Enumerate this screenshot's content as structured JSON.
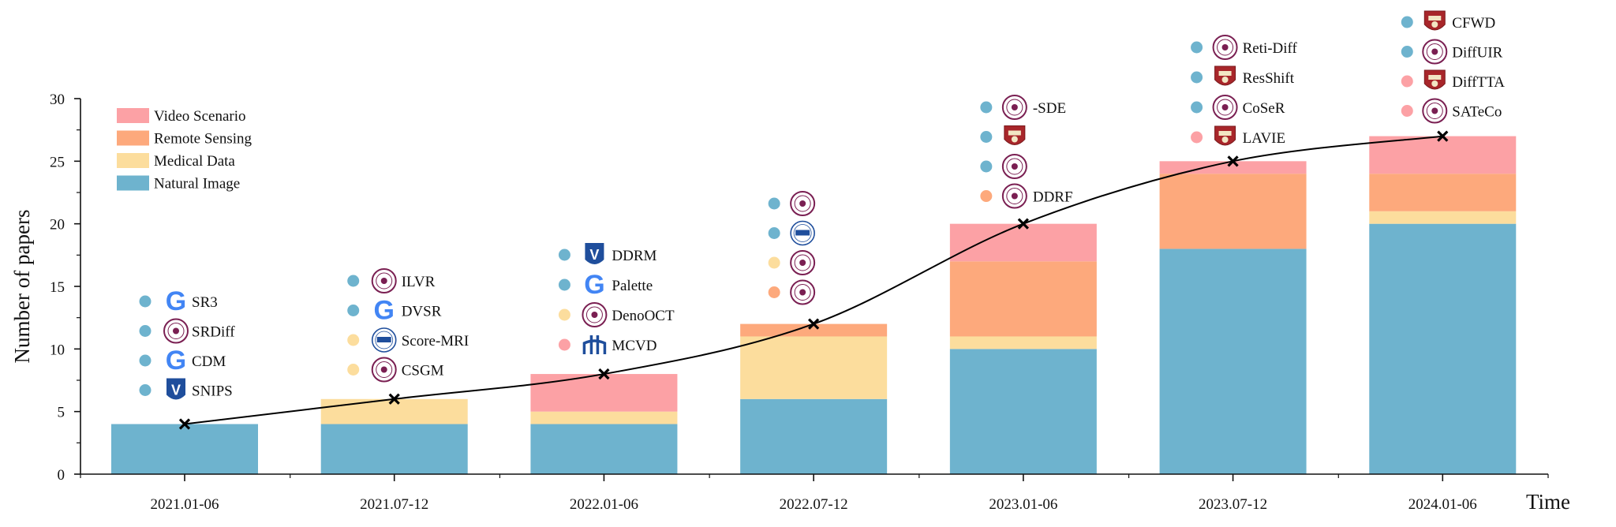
{
  "chart_data": {
    "type": "bar",
    "stacked": true,
    "title": "",
    "xlabel": "Time",
    "ylabel": "Number of papers",
    "ylim": [
      0,
      30
    ],
    "yticks": [
      0,
      5,
      10,
      15,
      20,
      25,
      30
    ],
    "categories": [
      "2021.01-06",
      "2021.07-12",
      "2022.01-06",
      "2022.07-12",
      "2023.01-06",
      "2023.07-12",
      "2024.01-06"
    ],
    "series": [
      {
        "name": "Natural Image",
        "color": "#6EB3CE",
        "values": [
          4,
          4,
          4,
          6,
          10,
          18,
          20
        ]
      },
      {
        "name": "Medical Data",
        "color": "#FCDD9D",
        "values": [
          0,
          2,
          1,
          5,
          1,
          0,
          1
        ]
      },
      {
        "name": "Remote Sensing",
        "color": "#FDA97C",
        "values": [
          0,
          0,
          0,
          1,
          6,
          6,
          3
        ]
      },
      {
        "name": "Video Scenario",
        "color": "#FCA1A5",
        "values": [
          0,
          0,
          3,
          0,
          3,
          1,
          3
        ]
      }
    ],
    "legend": {
      "position": "top-left",
      "order": [
        "Video Scenario",
        "Remote Sensing",
        "Medical Data",
        "Natural Image"
      ]
    },
    "trend_line": {
      "values": [
        4,
        6,
        8,
        12,
        20,
        25,
        27
      ],
      "marker": "x",
      "color": "#000000"
    },
    "annotations": [
      {
        "category": "2021.01-06",
        "papers": [
          {
            "label": "SR3",
            "dot": "#6EB3CE",
            "logo": "google-logo-icon"
          },
          {
            "label": "SRDiff",
            "dot": "#6EB3CE",
            "logo": "university-seal-icon"
          },
          {
            "label": "CDM",
            "dot": "#6EB3CE",
            "logo": "google-logo-icon"
          },
          {
            "label": "SNIPS",
            "dot": "#6EB3CE",
            "logo": "technion-logo-icon"
          }
        ]
      },
      {
        "category": "2021.07-12",
        "papers": [
          {
            "label": "ILVR",
            "dot": "#6EB3CE",
            "logo": "university-seal-icon"
          },
          {
            "label": "DVSR",
            "dot": "#6EB3CE",
            "logo": "google-logo-icon"
          },
          {
            "label": "Score-MRI",
            "dot": "#FCDD9D",
            "logo": "kaist-seal-icon"
          },
          {
            "label": "CSGM",
            "dot": "#FCDD9D",
            "logo": "university-seal-icon"
          }
        ]
      },
      {
        "category": "2022.01-06",
        "papers": [
          {
            "label": "DDRM",
            "dot": "#6EB3CE",
            "logo": "technion-logo-icon"
          },
          {
            "label": "Palette",
            "dot": "#6EB3CE",
            "logo": "google-logo-icon"
          },
          {
            "label": "DenoOCT",
            "dot": "#FCDD9D",
            "logo": "university-seal-icon"
          },
          {
            "label": "MCVD",
            "dot": "#FCA1A5",
            "logo": "mila-logo-icon"
          }
        ]
      },
      {
        "category": "2022.07-12",
        "papers": [
          {
            "label": "",
            "dot": "#6EB3CE",
            "logo": "university-seal-icon"
          },
          {
            "label": "",
            "dot": "#6EB3CE",
            "logo": "kaist-seal-icon"
          },
          {
            "label": "",
            "dot": "#FCDD9D",
            "logo": "university-seal-icon"
          },
          {
            "label": "",
            "dot": "#FDA97C",
            "logo": "university-seal-icon"
          }
        ]
      },
      {
        "category": "2023.01-06",
        "papers": [
          {
            "label": "-SDE",
            "dot": "#6EB3CE",
            "logo": "university-seal-icon"
          },
          {
            "label": "",
            "dot": "#6EB3CE",
            "logo": "university-shield-icon"
          },
          {
            "label": "",
            "dot": "#6EB3CE",
            "logo": "university-seal-icon"
          },
          {
            "label": "DDRF",
            "dot": "#FDA97C",
            "logo": "university-seal-icon"
          }
        ]
      },
      {
        "category": "2023.07-12",
        "papers": [
          {
            "label": "Reti-Diff",
            "dot": "#6EB3CE",
            "logo": "university-seal-icon"
          },
          {
            "label": "ResShift",
            "dot": "#6EB3CE",
            "logo": "university-shield-icon"
          },
          {
            "label": "CoSeR",
            "dot": "#6EB3CE",
            "logo": "university-seal-icon"
          },
          {
            "label": "LAVIE",
            "dot": "#FCA1A5",
            "logo": "university-shield-icon"
          }
        ]
      },
      {
        "category": "2024.01-06",
        "papers": [
          {
            "label": "CFWD",
            "dot": "#6EB3CE",
            "logo": "university-shield-icon"
          },
          {
            "label": "DiffUIR",
            "dot": "#6EB3CE",
            "logo": "university-seal-icon"
          },
          {
            "label": "DiffTTA",
            "dot": "#FCA1A5",
            "logo": "university-shield-icon"
          },
          {
            "label": "SATeCo",
            "dot": "#FCA1A5",
            "logo": "university-seal-icon"
          }
        ]
      }
    ]
  }
}
